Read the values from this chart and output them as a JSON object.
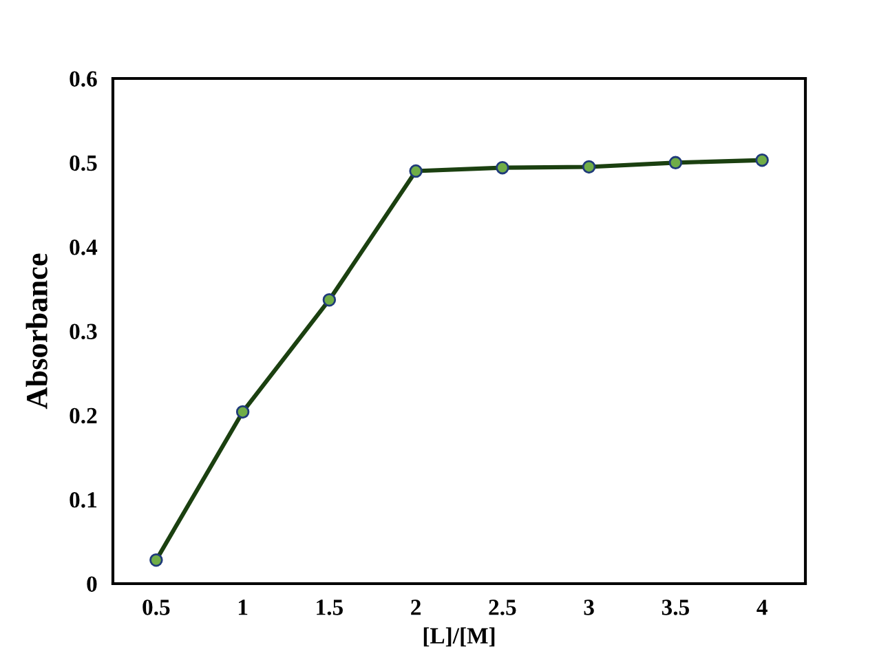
{
  "chart_data": {
    "type": "line",
    "xlabel": "[L]/[M]",
    "ylabel": "Absorbance",
    "categories": [
      "0.5",
      "1",
      "1.5",
      "2",
      "2.5",
      "3",
      "3.5",
      "4"
    ],
    "series": [
      {
        "color": "#1b4010",
        "values": [
          0.028,
          0.204,
          0.337,
          0.49,
          0.494,
          0.495,
          0.5,
          0.503
        ]
      }
    ],
    "marker": "circle",
    "line_style": "solid",
    "grid": false,
    "legend": false,
    "ylim": [
      0,
      0.6
    ],
    "yticks": [
      0,
      0.1,
      0.2,
      0.3,
      0.4,
      0.5,
      0.6
    ]
  }
}
